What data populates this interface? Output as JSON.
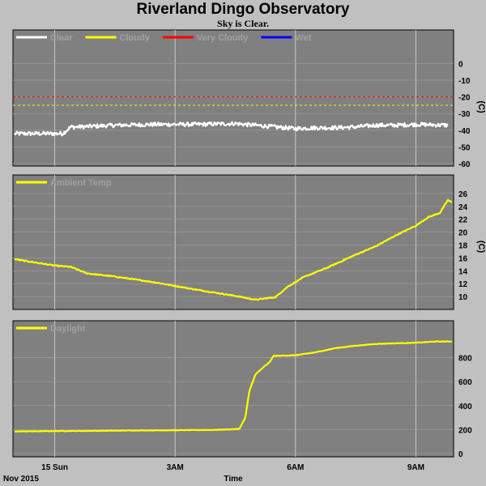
{
  "header": {
    "title": "Riverland Dingo Observatory",
    "subtitle": "Sky is Clear."
  },
  "colors": {
    "background": "#c0c0c0",
    "panel": "#808080",
    "grid": "#c8c8c8",
    "clear": "#ffffff",
    "cloudy": "#ffff00",
    "very_cloudy": "#ff0000",
    "wet": "#0000ff"
  },
  "chart_data": [
    {
      "type": "line",
      "id": "sky",
      "unit_label": "(C)",
      "legend": [
        {
          "name": "Clear",
          "color": "#ffffff"
        },
        {
          "name": "Cloudy",
          "color": "#ffff00"
        },
        {
          "name": "Very Cloudy",
          "color": "#ff0000"
        },
        {
          "name": "Wet",
          "color": "#0000ff"
        }
      ],
      "ylim": [
        -60,
        8
      ],
      "yticks": [
        0,
        -10,
        -20,
        -30,
        -40,
        -50,
        -60
      ],
      "thresholds": [
        {
          "value": -20,
          "color": "#ff0000"
        },
        {
          "value": -25,
          "color": "#ffff00"
        }
      ],
      "series": [
        {
          "name": "Clear",
          "color": "#ffffff",
          "noise": 1.2,
          "points": [
            [
              0.0,
              -42
            ],
            [
              1.2,
              -42
            ],
            [
              1.4,
              -38
            ],
            [
              1.6,
              -38
            ],
            [
              2.5,
              -37
            ],
            [
              3.5,
              -36.5
            ],
            [
              4.5,
              -36.5
            ],
            [
              5.5,
              -36
            ],
            [
              6.0,
              -37
            ],
            [
              6.5,
              -38
            ],
            [
              7.0,
              -39
            ],
            [
              7.5,
              -38.5
            ],
            [
              8.0,
              -38.5
            ],
            [
              8.5,
              -38
            ],
            [
              9.0,
              -37
            ],
            [
              9.5,
              -37
            ],
            [
              10.0,
              -36.5
            ],
            [
              10.8,
              -37
            ]
          ]
        }
      ]
    },
    {
      "type": "line",
      "id": "ambient",
      "unit_label": "(C)",
      "legend": [
        {
          "name": "Ambient Temp",
          "color": "#ffff00"
        }
      ],
      "ylim": [
        8.5,
        27
      ],
      "yticks": [
        10,
        12,
        14,
        16,
        18,
        20,
        22,
        24,
        26
      ],
      "series": [
        {
          "name": "Ambient Temp",
          "color": "#ffff00",
          "noise": 0.08,
          "points": [
            [
              0.0,
              15.8
            ],
            [
              0.5,
              15.3
            ],
            [
              1.0,
              14.8
            ],
            [
              1.4,
              14.6
            ],
            [
              1.8,
              13.6
            ],
            [
              2.5,
              13.1
            ],
            [
              3.5,
              12.2
            ],
            [
              4.5,
              11.1
            ],
            [
              5.5,
              10.1
            ],
            [
              6.0,
              9.5
            ],
            [
              6.5,
              9.9
            ],
            [
              6.8,
              11.5
            ],
            [
              7.2,
              13
            ],
            [
              7.8,
              14.5
            ],
            [
              8.5,
              16.5
            ],
            [
              9.0,
              17.8
            ],
            [
              9.5,
              19.5
            ],
            [
              10.0,
              21
            ],
            [
              10.3,
              22.3
            ],
            [
              10.6,
              23
            ],
            [
              10.7,
              24
            ],
            [
              10.8,
              25
            ],
            [
              10.9,
              24.6
            ]
          ]
        }
      ]
    },
    {
      "type": "line",
      "id": "daylight",
      "legend": [
        {
          "name": "Daylight",
          "color": "#ffff00"
        }
      ],
      "ylim": [
        0,
        1000
      ],
      "yticks": [
        0,
        200,
        400,
        600,
        800
      ],
      "series": [
        {
          "name": "Daylight",
          "color": "#ffff00",
          "noise": 2,
          "points": [
            [
              0.0,
              185
            ],
            [
              1.0,
              188
            ],
            [
              2.0,
              190
            ],
            [
              3.0,
              193
            ],
            [
              4.0,
              195
            ],
            [
              5.0,
              198
            ],
            [
              5.6,
              205
            ],
            [
              5.75,
              300
            ],
            [
              5.85,
              520
            ],
            [
              6.0,
              660
            ],
            [
              6.2,
              720
            ],
            [
              6.35,
              760
            ],
            [
              6.45,
              815
            ],
            [
              7.0,
              820
            ],
            [
              7.5,
              845
            ],
            [
              8.0,
              880
            ],
            [
              8.5,
              900
            ],
            [
              9.0,
              915
            ],
            [
              9.5,
              920
            ],
            [
              10.0,
              925
            ],
            [
              10.5,
              935
            ],
            [
              10.9,
              935
            ]
          ]
        }
      ]
    }
  ],
  "xaxis": {
    "label": "Time",
    "date_label": "Nov 2015",
    "ticks": [
      {
        "label": "15 Sun",
        "value": 1
      },
      {
        "label": "3AM",
        "value": 4
      },
      {
        "label": "6AM",
        "value": 7
      },
      {
        "label": "9AM",
        "value": 10
      }
    ]
  }
}
